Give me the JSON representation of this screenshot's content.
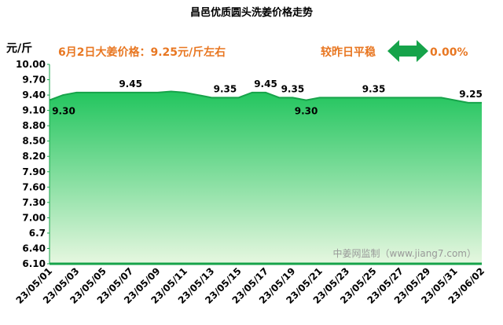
{
  "chart_data": {
    "type": "area",
    "title": "昌邑优质圆头洗姜价格走势",
    "y_unit": "元/斤",
    "headline": "6月2日大姜价格：9.25元/斤左右",
    "change_text": "较昨日平稳",
    "change_value": "0.00%",
    "watermark": "中姜网监制（www.jiang7.com）",
    "categories": [
      "23/05/01",
      null,
      "23/05/03",
      null,
      "23/05/05",
      null,
      "23/05/07",
      null,
      "23/05/09",
      null,
      "23/05/11",
      null,
      "23/05/13",
      null,
      "23/05/15",
      null,
      "23/05/17",
      null,
      "23/05/19",
      null,
      "23/05/21",
      null,
      "23/05/23",
      null,
      "23/05/25",
      null,
      "23/05/27",
      null,
      "23/05/29",
      null,
      "23/05/31",
      null,
      "23/06/02"
    ],
    "values": [
      9.3,
      9.4,
      9.45,
      9.45,
      9.45,
      9.45,
      9.45,
      9.45,
      9.45,
      9.47,
      9.45,
      9.4,
      9.35,
      9.35,
      9.35,
      9.45,
      9.45,
      9.35,
      9.35,
      9.3,
      9.35,
      9.35,
      9.35,
      9.35,
      9.35,
      9.35,
      9.35,
      9.35,
      9.35,
      9.35,
      9.3,
      9.25,
      9.25
    ],
    "value_labels": [
      "9.30",
      null,
      null,
      null,
      null,
      null,
      "9.45",
      null,
      null,
      null,
      null,
      null,
      null,
      "9.35",
      null,
      null,
      "9.45",
      null,
      "9.35",
      "9.30",
      null,
      null,
      null,
      null,
      "9.35",
      null,
      null,
      null,
      null,
      null,
      null,
      null,
      "9.25"
    ],
    "color": "#17a34a",
    "ylim": [
      6.1,
      10.0
    ],
    "yticks": [
      {
        "value": 6.1,
        "label": "6.10"
      },
      {
        "value": 6.4,
        "label": "6.40"
      },
      6.7,
      {
        "value": 7.0,
        "label": "7.00"
      },
      {
        "value": 7.3,
        "label": "7.30"
      },
      {
        "value": 7.6,
        "label": "7.60"
      },
      {
        "value": 7.9,
        "label": "7.90"
      },
      {
        "value": 8.2,
        "label": "8.20"
      },
      {
        "value": 8.5,
        "label": "8.50"
      },
      {
        "value": 8.8,
        "label": "8.80"
      },
      {
        "value": 9.1,
        "label": "9.10"
      },
      {
        "value": 9.4,
        "label": "9.40"
      },
      {
        "value": 9.7,
        "label": "9.70"
      },
      {
        "value": 10.0,
        "label": "10.00"
      }
    ]
  }
}
